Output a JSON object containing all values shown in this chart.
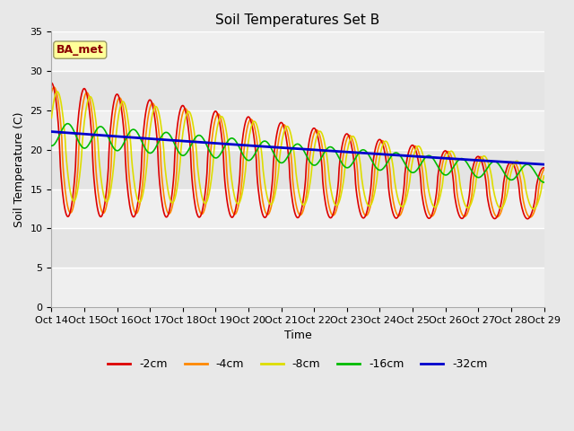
{
  "title": "Soil Temperatures Set B",
  "xlabel": "Time",
  "ylabel": "Soil Temperature (C)",
  "ylim": [
    0,
    35
  ],
  "xlim": [
    0,
    15
  ],
  "x_tick_labels": [
    "Oct 14",
    "Oct 15",
    "Oct 16",
    "Oct 17",
    "Oct 18",
    "Oct 19",
    "Oct 20",
    "Oct 21",
    "Oct 22",
    "Oct 23",
    "Oct 24",
    "Oct 25",
    "Oct 26",
    "Oct 27",
    "Oct 28",
    "Oct 29"
  ],
  "annotation_text": "BA_met",
  "annotation_color": "#8b0000",
  "annotation_bg": "#ffff99",
  "series": {
    "-2cm": {
      "color": "#dd0000",
      "lw": 1.2
    },
    "-4cm": {
      "color": "#ff8800",
      "lw": 1.2
    },
    "-8cm": {
      "color": "#dddd00",
      "lw": 1.2
    },
    "-16cm": {
      "color": "#00bb00",
      "lw": 1.2
    },
    "-32cm": {
      "color": "#0000cc",
      "lw": 2.0
    }
  },
  "legend_order": [
    "-2cm",
    "-4cm",
    "-8cm",
    "-16cm",
    "-32cm"
  ],
  "yticks": [
    0,
    5,
    10,
    15,
    20,
    25,
    30,
    35
  ],
  "figsize": [
    6.4,
    4.8
  ],
  "dpi": 100
}
